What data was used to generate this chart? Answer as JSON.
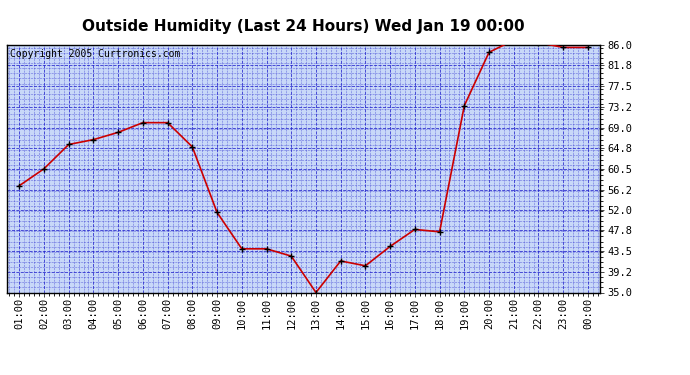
{
  "title": "Outside Humidity (Last 24 Hours) Wed Jan 19 00:00",
  "copyright": "Copyright 2005 Curtronics.com",
  "x_labels": [
    "01:00",
    "02:00",
    "03:00",
    "04:00",
    "05:00",
    "06:00",
    "07:00",
    "08:00",
    "09:00",
    "10:00",
    "11:00",
    "12:00",
    "13:00",
    "14:00",
    "15:00",
    "16:00",
    "17:00",
    "18:00",
    "19:00",
    "20:00",
    "21:00",
    "22:00",
    "23:00",
    "00:00"
  ],
  "x_values": [
    1,
    2,
    3,
    4,
    5,
    6,
    7,
    8,
    9,
    10,
    11,
    12,
    13,
    14,
    15,
    16,
    17,
    18,
    19,
    20,
    21,
    22,
    23,
    24
  ],
  "y_values": [
    57.0,
    60.5,
    65.5,
    66.5,
    68.0,
    70.0,
    70.0,
    65.0,
    51.5,
    44.0,
    44.0,
    42.5,
    35.0,
    41.5,
    40.5,
    44.5,
    48.0,
    47.5,
    73.5,
    84.5,
    87.0,
    86.5,
    85.5,
    85.5
  ],
  "ylim": [
    35.0,
    86.0
  ],
  "yticks": [
    35.0,
    39.2,
    43.5,
    47.8,
    52.0,
    56.2,
    60.5,
    64.8,
    69.0,
    73.2,
    77.5,
    81.8,
    86.0
  ],
  "line_color": "#cc0000",
  "marker_color": "#000000",
  "bg_color": "#c8d8f8",
  "grid_color": "#2222cc",
  "title_fontsize": 11,
  "copyright_fontsize": 7,
  "tick_fontsize": 7.5
}
